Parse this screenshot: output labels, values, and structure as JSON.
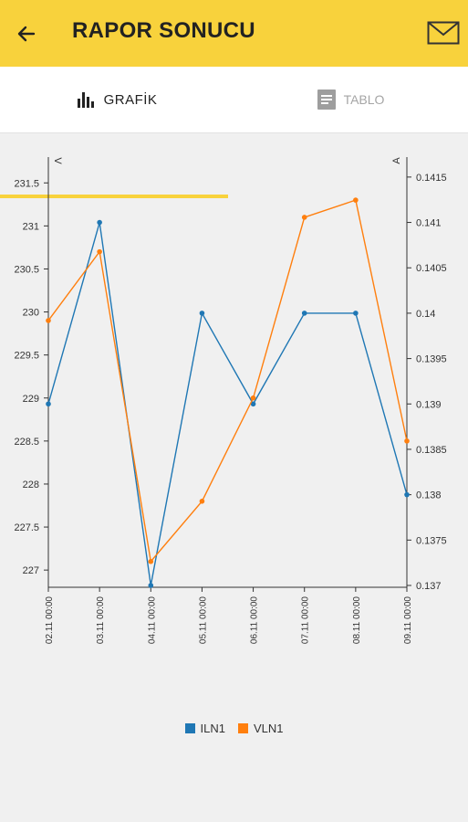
{
  "header": {
    "title": "RAPOR SONUCU",
    "back_icon": "arrow-left-icon",
    "mail_icon": "envelope-icon",
    "background": "#f8d23c"
  },
  "tabs": [
    {
      "label": "GRAFİK",
      "icon": "bar-chart-icon",
      "active": true
    },
    {
      "label": "TABLO",
      "icon": "document-icon",
      "active": false
    }
  ],
  "chart_data": {
    "type": "line",
    "x": [
      "02.11 00:00",
      "03.11 00:00",
      "04.11 00:00",
      "05.11 00:00",
      "06.11 00:00",
      "07.11 00:00",
      "08.11 00:00",
      "09.11 00:00"
    ],
    "series": [
      {
        "name": "ILN1",
        "axis": "right",
        "color": "#1f77b4",
        "values": [
          0.139,
          0.141,
          0.137,
          0.14,
          0.139,
          0.14,
          0.14,
          0.138
        ]
      },
      {
        "name": "VLN1",
        "axis": "left",
        "color": "#ff7f0e",
        "values": [
          229.9,
          230.7,
          227.1,
          227.8,
          229.0,
          231.1,
          231.3,
          228.5
        ]
      }
    ],
    "left_axis": {
      "label": "V",
      "ticks": [
        227,
        227.5,
        228,
        228.5,
        229,
        229.5,
        230,
        230.5,
        231,
        231.5
      ],
      "ylim": [
        226.8,
        231.8
      ]
    },
    "right_axis": {
      "label": "A",
      "ticks": [
        0.137,
        0.1375,
        0.138,
        0.1385,
        0.139,
        0.1395,
        0.14,
        0.1405,
        0.141,
        0.1415
      ],
      "ylim": [
        0.13698,
        0.14172
      ]
    },
    "legend_position": "bottom-center",
    "grid": false
  }
}
